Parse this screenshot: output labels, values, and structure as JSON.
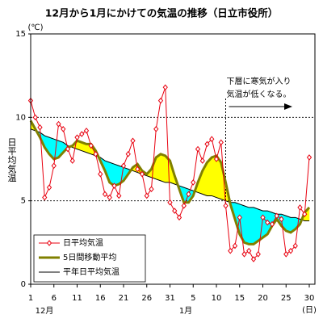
{
  "chart_data": {
    "type": "line",
    "title": "12月から1月にかけての気温の推移（日立市役所）",
    "y_unit": "(℃)",
    "y_label": "日平均気温",
    "x_unit": "(日)",
    "month_labels": [
      "12月",
      "1月"
    ],
    "categories": [
      "1",
      null,
      null,
      null,
      null,
      "6",
      null,
      null,
      null,
      null,
      "11",
      null,
      null,
      null,
      null,
      "16",
      null,
      null,
      null,
      null,
      "21",
      null,
      null,
      null,
      null,
      "26",
      null,
      null,
      null,
      null,
      "31",
      null,
      null,
      null,
      null,
      "5",
      null,
      null,
      null,
      null,
      "10",
      null,
      null,
      null,
      null,
      "15",
      null,
      null,
      null,
      null,
      "20",
      null,
      null,
      null,
      null,
      "25",
      null,
      null,
      null,
      null,
      "30"
    ],
    "series": [
      {
        "name": "日平均気温",
        "color": "#e8000f",
        "values": [
          11.0,
          10.0,
          9.4,
          5.2,
          5.8,
          7.1,
          9.6,
          9.3,
          8.1,
          7.4,
          8.8,
          9.0,
          9.2,
          8.3,
          7.8,
          6.6,
          5.4,
          5.2,
          5.9,
          5.3,
          7.1,
          7.8,
          8.6,
          6.9,
          6.6,
          5.3,
          5.7,
          9.3,
          11.0,
          11.8,
          4.9,
          4.4,
          4.0,
          4.7,
          5.4,
          6.1,
          8.1,
          7.4,
          8.4,
          8.7,
          7.5,
          8.5,
          4.7,
          2.0,
          2.3,
          4.0,
          1.8,
          2.0,
          1.5,
          1.8,
          4.0,
          3.7,
          3.6,
          4.1,
          3.9,
          1.8,
          2.0,
          2.3,
          4.6,
          4.2,
          7.6
        ]
      },
      {
        "name": "5日間移動平均",
        "color": "#808000",
        "values": [
          9.8,
          9.3,
          8.8,
          8.2,
          7.8,
          7.5,
          7.6,
          7.9,
          8.2,
          8.3,
          8.6,
          8.5,
          8.4,
          8.4,
          8.0,
          7.4,
          6.8,
          6.1,
          5.9,
          6.0,
          6.2,
          6.6,
          7.0,
          7.2,
          6.8,
          6.6,
          6.9,
          7.6,
          7.8,
          7.7,
          7.4,
          6.5,
          5.7,
          4.9,
          4.9,
          5.3,
          6.1,
          6.8,
          7.3,
          7.6,
          7.7,
          7.3,
          6.1,
          4.8,
          3.9,
          3.0,
          2.5,
          2.4,
          2.4,
          2.6,
          2.8,
          3.0,
          3.5,
          3.9,
          3.5,
          3.2,
          3.1,
          3.3,
          3.6,
          4.3,
          4.6
        ]
      },
      {
        "name": "平年日平均気温",
        "color": "#000000",
        "values": [
          9.3,
          9.2,
          9.1,
          8.9,
          8.8,
          8.7,
          8.6,
          8.5,
          8.3,
          8.2,
          8.1,
          8.0,
          7.9,
          7.8,
          7.7,
          7.6,
          7.4,
          7.3,
          7.2,
          7.1,
          7.0,
          6.9,
          6.8,
          6.7,
          6.6,
          6.5,
          6.4,
          6.3,
          6.2,
          6.1,
          6.1,
          6.0,
          5.9,
          5.8,
          5.7,
          5.6,
          5.5,
          5.4,
          5.3,
          5.3,
          5.2,
          5.1,
          5.0,
          4.9,
          4.9,
          4.8,
          4.7,
          4.6,
          4.6,
          4.5,
          4.4,
          4.4,
          4.3,
          4.2,
          4.2,
          4.1,
          4.0,
          4.0,
          3.9,
          3.8,
          3.8
        ]
      }
    ],
    "above_color": "#ffff00",
    "below_color": "#00ffff",
    "ylim": [
      0,
      15
    ],
    "yticks": [
      0,
      5,
      10,
      15
    ],
    "grid": true,
    "annotation": [
      "下層に寒気が入り",
      "気温が低くなる。"
    ]
  }
}
